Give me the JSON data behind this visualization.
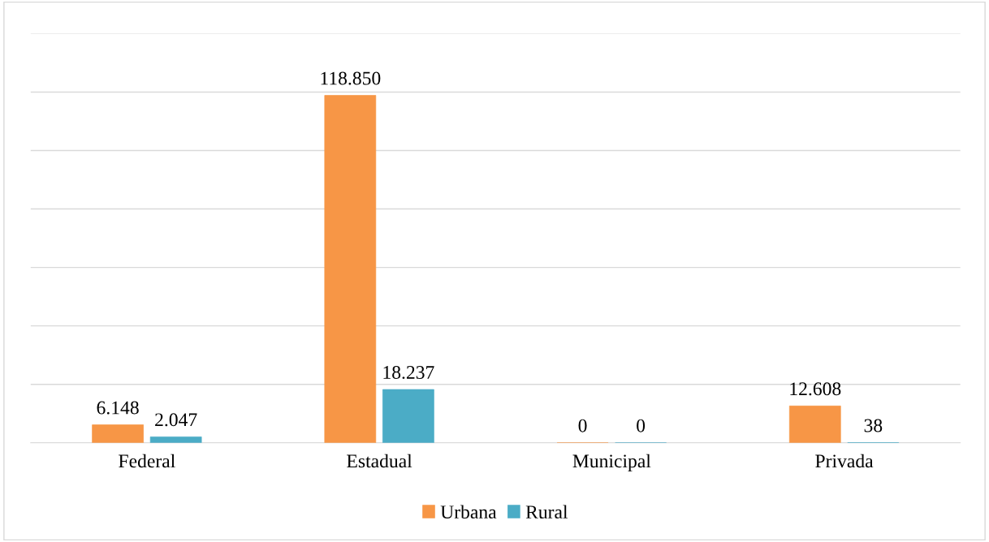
{
  "chart_data": {
    "type": "bar",
    "categories": [
      "Federal",
      "Estadual",
      "Municipal",
      "Privada"
    ],
    "series": [
      {
        "name": "Urbana",
        "color": "#f79646",
        "values": [
          6148,
          118850,
          0,
          12608
        ],
        "value_labels": [
          "6.148",
          "118.850",
          "0",
          "12.608"
        ]
      },
      {
        "name": "Rural",
        "color": "#4bacc6",
        "values": [
          2047,
          18237,
          0,
          38
        ],
        "value_labels": [
          "2.047",
          "18.237",
          "0",
          "38"
        ]
      }
    ],
    "ylim": [
      0,
      140000
    ],
    "yticks": [
      {
        "value": 0,
        "label": null
      },
      {
        "value": 20000,
        "label": null
      },
      {
        "value": 40000,
        "label": null
      },
      {
        "value": 60000,
        "label": null
      },
      {
        "value": 80000,
        "label": null
      },
      {
        "value": 100000,
        "label": null
      },
      {
        "value": 120000,
        "label": null
      },
      {
        "value": 140000,
        "label": null
      }
    ],
    "grid": "y",
    "legend": "bottom",
    "tick_labels": "x"
  }
}
